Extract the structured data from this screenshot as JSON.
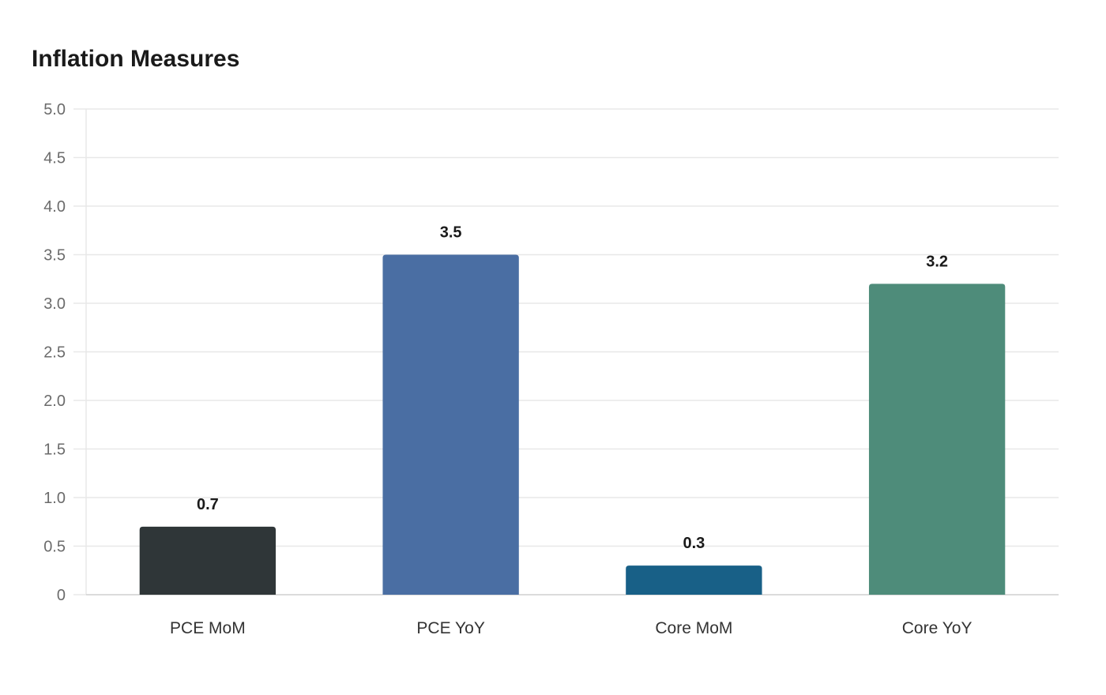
{
  "chart_data": {
    "type": "bar",
    "title": "Inflation Measures",
    "xlabel": "",
    "ylabel": "",
    "categories": [
      "PCE MoM",
      "PCE YoY",
      "Core MoM",
      "Core YoY"
    ],
    "values": [
      0.7,
      3.5,
      0.3,
      3.2
    ],
    "value_labels": [
      "0.7",
      "3.5",
      "0.3",
      "3.2"
    ],
    "colors": [
      "#2f3638",
      "#4a6ea3",
      "#186087",
      "#4e8c7a"
    ],
    "ylim": [
      0,
      5
    ],
    "yticks": [
      0,
      0.5,
      1.0,
      1.5,
      2.0,
      2.5,
      3.0,
      3.5,
      4.0,
      4.5,
      5.0
    ],
    "ytick_labels": [
      "0",
      "0.5",
      "1.0",
      "1.5",
      "2.0",
      "2.5",
      "3.0",
      "3.5",
      "4.0",
      "4.5",
      "5.0"
    ],
    "grid": true,
    "legend": "none"
  }
}
